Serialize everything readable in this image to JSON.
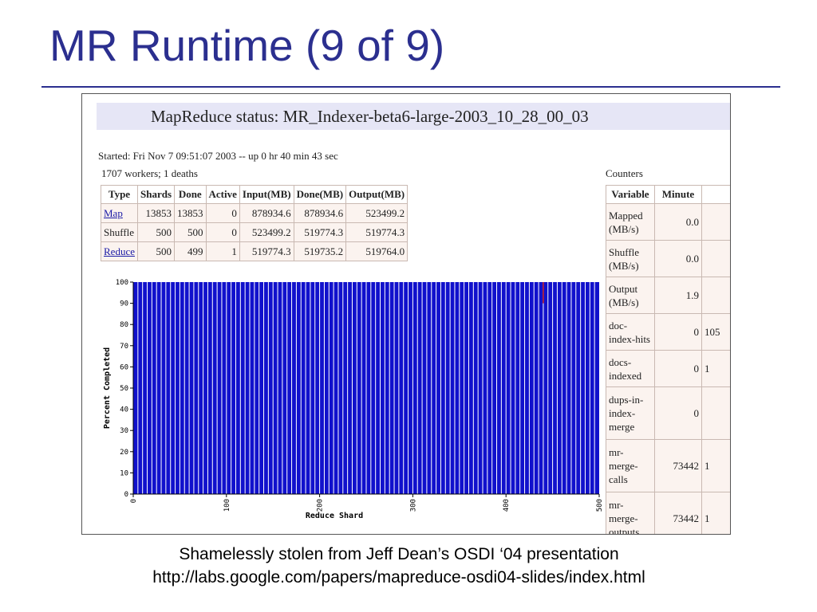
{
  "slide": {
    "title": "MR Runtime (9 of 9)",
    "caption_line1": "Shamelessly stolen from Jeff Dean’s OSDI ‘04 presentation",
    "caption_line2": "http://labs.google.com/papers/mapreduce-osdi04-slides/index.html"
  },
  "status": {
    "heading": "MapReduce status: MR_Indexer-beta6-large-2003_10_28_00_03",
    "started": "Started: Fri Nov 7 09:51:07 2003 -- up 0 hr 40 min 43 sec",
    "workers": "1707 workers; 1 deaths",
    "counters_label": "Counters"
  },
  "tasks": {
    "headers": [
      "Type",
      "Shards",
      "Done",
      "Active",
      "Input(MB)",
      "Done(MB)",
      "Output(MB)"
    ],
    "rows": [
      {
        "type": "Map",
        "link": true,
        "shards": "13853",
        "done": "13853",
        "active": "0",
        "input": "878934.6",
        "done_mb": "878934.6",
        "output": "523499.2"
      },
      {
        "type": "Shuffle",
        "link": false,
        "shards": "500",
        "done": "500",
        "active": "0",
        "input": "523499.2",
        "done_mb": "519774.3",
        "output": "519774.3"
      },
      {
        "type": "Reduce",
        "link": true,
        "shards": "500",
        "done": "499",
        "active": "1",
        "input": "519774.3",
        "done_mb": "519735.2",
        "output": "519764.0"
      }
    ]
  },
  "counters": {
    "headers": [
      "Variable",
      "Minute"
    ],
    "rows": [
      {
        "variable": "Mapped (MB/s)",
        "minute": "0.0",
        "extra": ""
      },
      {
        "variable": "Shuffle (MB/s)",
        "minute": "0.0",
        "extra": ""
      },
      {
        "variable": "Output (MB/s)",
        "minute": "1.9",
        "extra": ""
      },
      {
        "variable": "doc-index-hits",
        "minute": "0",
        "extra": "105"
      },
      {
        "variable": "docs-indexed",
        "minute": "0",
        "extra": "1"
      },
      {
        "variable": "dups-in-index-merge",
        "minute": "0",
        "extra": ""
      },
      {
        "variable": "mr-merge-calls",
        "minute": "73442",
        "extra": "1"
      },
      {
        "variable": "mr-merge-outputs",
        "minute": "73442",
        "extra": "1"
      }
    ]
  },
  "chart_data": {
    "type": "bar",
    "xlabel": "Reduce Shard",
    "ylabel": "Percent Completed",
    "xlim": [
      0,
      500
    ],
    "ylim": [
      0,
      100
    ],
    "xticks": [
      0,
      100,
      200,
      300,
      400,
      500
    ],
    "yticks": [
      0,
      10,
      20,
      30,
      40,
      50,
      60,
      70,
      80,
      90,
      100
    ],
    "series": [
      {
        "values_description_free": true,
        "completed_shards_range": [
          0,
          500
        ],
        "value": 100
      }
    ],
    "in_progress_shard": 440,
    "bar_color": "#1111cc",
    "gap_color": "#ffffff",
    "marker_color": "#cc2222"
  }
}
